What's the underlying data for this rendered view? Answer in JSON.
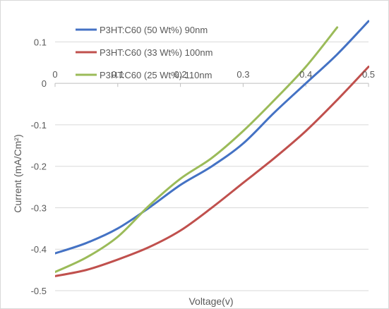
{
  "chart_data": {
    "type": "line",
    "title": "",
    "xlabel": "Voltage(v)",
    "ylabel": "Current (mA/Cm²)",
    "xlim": [
      0,
      0.5
    ],
    "ylim": [
      -0.5,
      0.15
    ],
    "x_ticks": [
      "0",
      "0.1",
      "0.2",
      "0.3",
      "0.4",
      "0.5"
    ],
    "y_ticks": [
      "0.1",
      "0",
      "-0.1",
      "-0.2",
      "-0.3",
      "-0.4",
      "-0.5"
    ],
    "grid": "horizontal",
    "legend_position": "top-left",
    "series": [
      {
        "name": "P3HT:C60 (50 Wt%) 90nm",
        "color": "#4472c4",
        "x": [
          0,
          0.05,
          0.1,
          0.15,
          0.2,
          0.25,
          0.3,
          0.35,
          0.4,
          0.45,
          0.5
        ],
        "y": [
          -0.41,
          -0.385,
          -0.35,
          -0.3,
          -0.245,
          -0.2,
          -0.145,
          -0.07,
          0.0,
          0.07,
          0.15
        ]
      },
      {
        "name": "P3HT:C60 (33 Wt%) 100nm",
        "color": "#c0504d",
        "x": [
          0,
          0.05,
          0.1,
          0.15,
          0.2,
          0.25,
          0.3,
          0.35,
          0.4,
          0.45,
          0.5
        ],
        "y": [
          -0.465,
          -0.45,
          -0.425,
          -0.395,
          -0.355,
          -0.3,
          -0.24,
          -0.18,
          -0.115,
          -0.04,
          0.04
        ]
      },
      {
        "name": "P3HT:C60 (25 Wt%) 110nm",
        "color": "#9bbb59",
        "x": [
          0,
          0.05,
          0.1,
          0.15,
          0.2,
          0.25,
          0.3,
          0.35,
          0.4,
          0.45
        ],
        "y": [
          -0.455,
          -0.42,
          -0.37,
          -0.295,
          -0.23,
          -0.18,
          -0.115,
          -0.04,
          0.04,
          0.135
        ]
      }
    ]
  }
}
